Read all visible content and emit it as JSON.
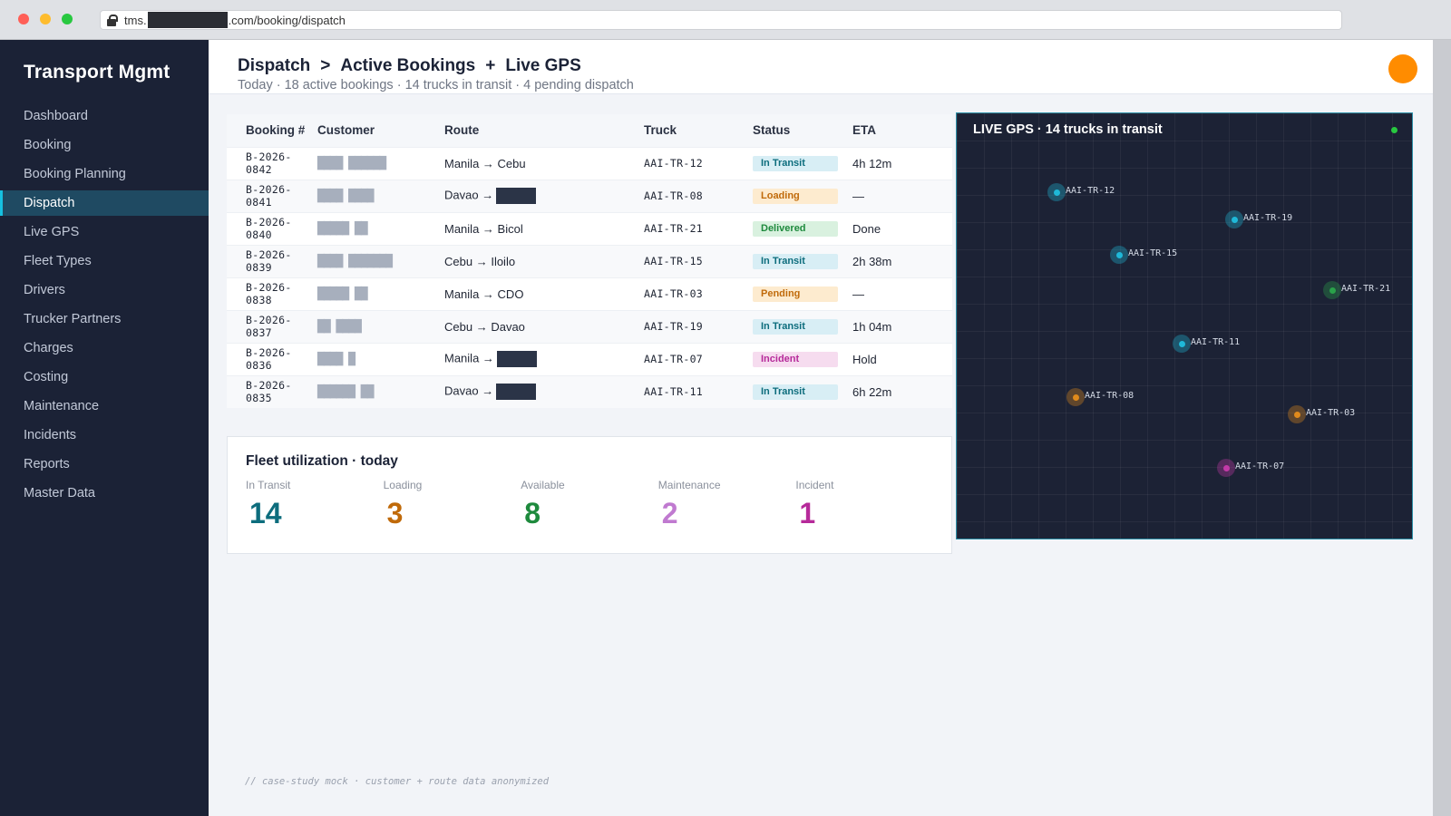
{
  "browser": {
    "url_prefix": "tms.",
    "url_suffix": ".com/booking/dispatch"
  },
  "sidebar": {
    "brand": "Transport Mgmt",
    "items": [
      {
        "label": "Dashboard",
        "active": false
      },
      {
        "label": "Booking",
        "active": false
      },
      {
        "label": "Booking Planning",
        "active": false
      },
      {
        "label": "Dispatch",
        "active": true
      },
      {
        "label": "Live GPS",
        "active": false
      },
      {
        "label": "Fleet Types",
        "active": false
      },
      {
        "label": "Drivers",
        "active": false
      },
      {
        "label": "Trucker Partners",
        "active": false
      },
      {
        "label": "Charges",
        "active": false
      },
      {
        "label": "Costing",
        "active": false
      },
      {
        "label": "Maintenance",
        "active": false
      },
      {
        "label": "Incidents",
        "active": false
      },
      {
        "label": "Reports",
        "active": false
      },
      {
        "label": "Master Data",
        "active": false
      }
    ]
  },
  "header": {
    "crumb1": "Dispatch",
    "sep1": ">",
    "crumb2": "Active Bookings",
    "sep2": "+",
    "crumb3": "Live GPS",
    "subtitle": "Today · 18 active bookings · 14 trucks in transit · 4 pending dispatch"
  },
  "table": {
    "columns": [
      "Booking #",
      "Customer",
      "Route",
      "Truck",
      "Status",
      "ETA"
    ],
    "rows": [
      {
        "booking": "B-2026-0842",
        "customer": "████ ██████",
        "origin": "Manila",
        "arrow": "→",
        "dest": "Cebu",
        "dest_redacted": false,
        "truck": "AAI-TR-12",
        "status": "In Transit",
        "status_kind": "transit",
        "eta": "4h 12m"
      },
      {
        "booking": "B-2026-0841",
        "customer": "████ ████",
        "origin": "Davao",
        "arrow": "→",
        "dest": "",
        "dest_redacted": true,
        "truck": "AAI-TR-08",
        "status": "Loading",
        "status_kind": "loading",
        "eta": "—"
      },
      {
        "booking": "B-2026-0840",
        "customer": "█████ ██",
        "origin": "Manila",
        "arrow": "→",
        "dest": "Bicol",
        "dest_redacted": false,
        "truck": "AAI-TR-21",
        "status": "Delivered",
        "status_kind": "delivered",
        "eta": "Done"
      },
      {
        "booking": "B-2026-0839",
        "customer": "████ ███████",
        "origin": "Cebu",
        "arrow": "→",
        "dest": "Iloilo",
        "dest_redacted": false,
        "truck": "AAI-TR-15",
        "status": "In Transit",
        "status_kind": "transit",
        "eta": "2h 38m"
      },
      {
        "booking": "B-2026-0838",
        "customer": "█████ ██",
        "origin": "Manila",
        "arrow": "→",
        "dest": "CDO",
        "dest_redacted": false,
        "truck": "AAI-TR-03",
        "status": "Pending",
        "status_kind": "pending",
        "eta": "—"
      },
      {
        "booking": "B-2026-0837",
        "customer": "██ ████",
        "origin": "Cebu",
        "arrow": "→",
        "dest": "Davao",
        "dest_redacted": false,
        "truck": "AAI-TR-19",
        "status": "In Transit",
        "status_kind": "transit",
        "eta": "1h 04m"
      },
      {
        "booking": "B-2026-0836",
        "customer": "████ █",
        "origin": "Manila",
        "arrow": "→",
        "dest": "",
        "dest_redacted": true,
        "truck": "AAI-TR-07",
        "status": "Incident",
        "status_kind": "incident",
        "eta": "Hold"
      },
      {
        "booking": "B-2026-0835",
        "customer": "██████ ██",
        "origin": "Davao",
        "arrow": "→",
        "dest": "",
        "dest_redacted": true,
        "truck": "AAI-TR-11",
        "status": "In Transit",
        "status_kind": "transit",
        "eta": "6h 22m"
      }
    ]
  },
  "utilization": {
    "title": "Fleet utilization · today",
    "items": [
      {
        "label": "In Transit",
        "value": "14",
        "color": "#0d6d7d"
      },
      {
        "label": "Loading",
        "value": "3",
        "color": "#c06a0a"
      },
      {
        "label": "Available",
        "value": "8",
        "color": "#1e8a3d"
      },
      {
        "label": "Maintenance",
        "value": "2",
        "color": "#c07ad0"
      },
      {
        "label": "Incident",
        "value": "1",
        "color": "#b62a9a"
      }
    ]
  },
  "gps": {
    "title": "LIVE GPS · 14 trucks in transit",
    "status_colors": {
      "transit": "#1fb8d8",
      "loading": "#e08a1c",
      "delivered": "#2aa14a",
      "pending": "#e08a1c",
      "incident": "#c23aa8"
    },
    "trucks": [
      {
        "id": "AAI-TR-12",
        "status": "transit"
      },
      {
        "id": "AAI-TR-19",
        "status": "transit"
      },
      {
        "id": "AAI-TR-15",
        "status": "transit"
      },
      {
        "id": "AAI-TR-21",
        "status": "delivered"
      },
      {
        "id": "AAI-TR-11",
        "status": "transit"
      },
      {
        "id": "AAI-TR-08",
        "status": "loading"
      },
      {
        "id": "AAI-TR-03",
        "status": "pending"
      },
      {
        "id": "AAI-TR-07",
        "status": "incident"
      }
    ]
  },
  "footnote": "// case-study mock · customer + route data anonymized"
}
